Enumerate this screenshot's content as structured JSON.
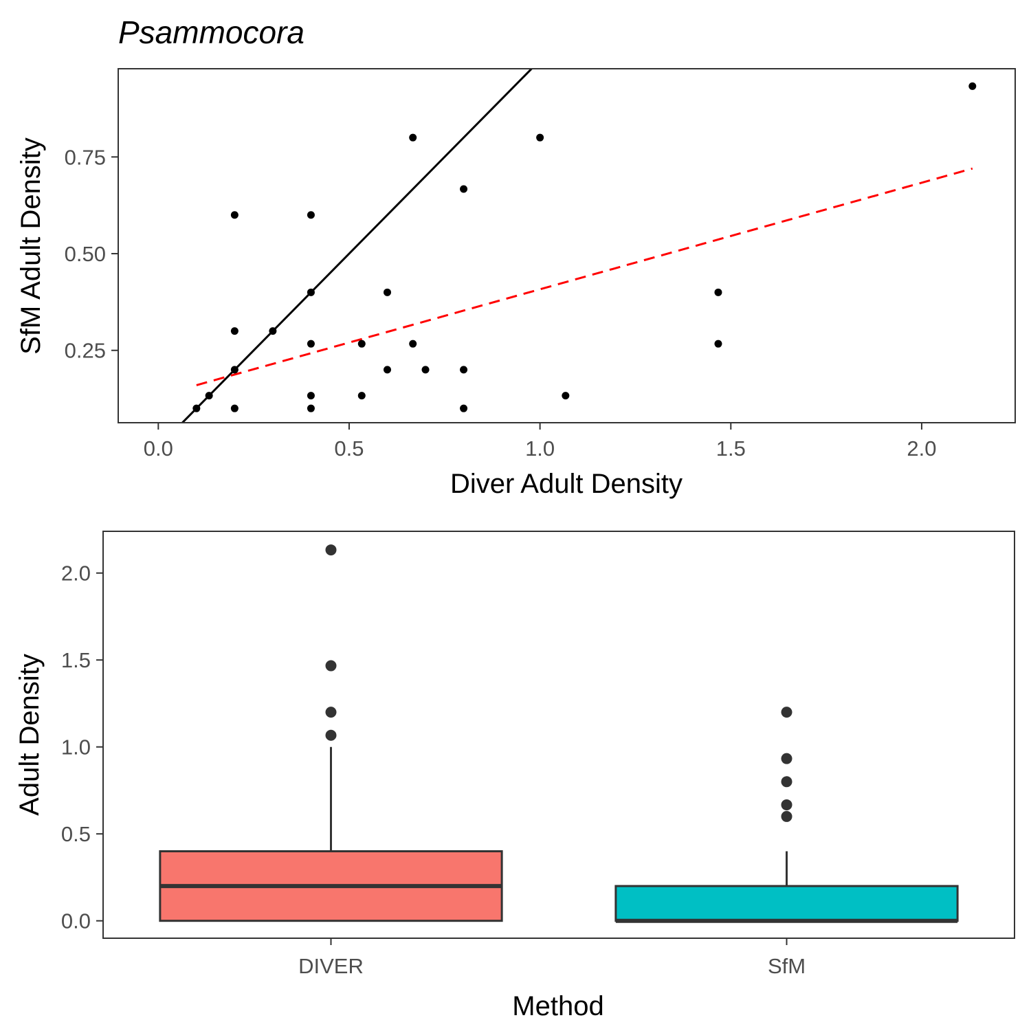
{
  "chart_data": [
    {
      "type": "scatter",
      "title": "Psammocora",
      "xlabel": "Diver Adult Density",
      "ylabel": "SfM Adult Density",
      "xlim": [
        -0.105,
        2.245
      ],
      "ylim": [
        0.063,
        0.978
      ],
      "xticks": [
        0,
        0.5,
        1,
        1.5,
        2
      ],
      "xtick_labels": [
        "0.0",
        "0.5",
        "1.0",
        "1.5",
        "2.0"
      ],
      "yticks": [
        0.25,
        0.5,
        0.75
      ],
      "ytick_labels": [
        "0.25",
        "0.50",
        "0.75"
      ],
      "grid": false,
      "points": [
        {
          "x": 0.1,
          "y": 0.1
        },
        {
          "x": 0.133,
          "y": 0.133
        },
        {
          "x": 0.2,
          "y": 0.6
        },
        {
          "x": 0.2,
          "y": 0.3
        },
        {
          "x": 0.2,
          "y": 0.2
        },
        {
          "x": 0.2,
          "y": 0.1
        },
        {
          "x": 0.3,
          "y": 0.3
        },
        {
          "x": 0.4,
          "y": 0.6
        },
        {
          "x": 0.4,
          "y": 0.4
        },
        {
          "x": 0.4,
          "y": 0.267
        },
        {
          "x": 0.4,
          "y": 0.133
        },
        {
          "x": 0.4,
          "y": 0.1
        },
        {
          "x": 0.533,
          "y": 0.267
        },
        {
          "x": 0.533,
          "y": 0.133
        },
        {
          "x": 0.6,
          "y": 0.4
        },
        {
          "x": 0.6,
          "y": 0.2
        },
        {
          "x": 0.667,
          "y": 0.8
        },
        {
          "x": 0.667,
          "y": 0.267
        },
        {
          "x": 0.7,
          "y": 0.2
        },
        {
          "x": 0.8,
          "y": 0.667
        },
        {
          "x": 0.8,
          "y": 0.2
        },
        {
          "x": 0.8,
          "y": 0.1
        },
        {
          "x": 1.0,
          "y": 0.8
        },
        {
          "x": 1.067,
          "y": 0.133
        },
        {
          "x": 1.467,
          "y": 0.4
        },
        {
          "x": 1.467,
          "y": 0.267
        },
        {
          "x": 2.133,
          "y": 0.933
        }
      ],
      "lines": [
        {
          "style": "solid",
          "color": "#000000",
          "slope": 1,
          "intercept": 0
        },
        {
          "style": "dashed",
          "color": "#ff0000",
          "x": [
            0.1,
            2.133
          ],
          "y": [
            0.16,
            0.72
          ]
        }
      ]
    },
    {
      "type": "box",
      "xlabel": "Method",
      "ylabel": "Adult Density",
      "categories": [
        "DIVER",
        "SfM"
      ],
      "ylim": [
        -0.1,
        2.24
      ],
      "yticks": [
        0,
        0.5,
        1,
        1.5,
        2
      ],
      "ytick_labels": [
        "0.0",
        "0.5",
        "1.0",
        "1.5",
        "2.0"
      ],
      "grid": false,
      "boxes": [
        {
          "category": "DIVER",
          "color": "#F8766D",
          "q1": 0,
          "median": 0.2,
          "q3": 0.4,
          "whisker_low": 0,
          "whisker_high": 1.0,
          "outliers": [
            2.133,
            1.467,
            1.2,
            1.067
          ]
        },
        {
          "category": "SfM",
          "color": "#00BFC4",
          "q1": 0,
          "median": 0,
          "q3": 0.2,
          "whisker_low": 0,
          "whisker_high": 0.4,
          "outliers": [
            1.2,
            0.933,
            0.8,
            0.667,
            0.6
          ]
        }
      ]
    }
  ]
}
